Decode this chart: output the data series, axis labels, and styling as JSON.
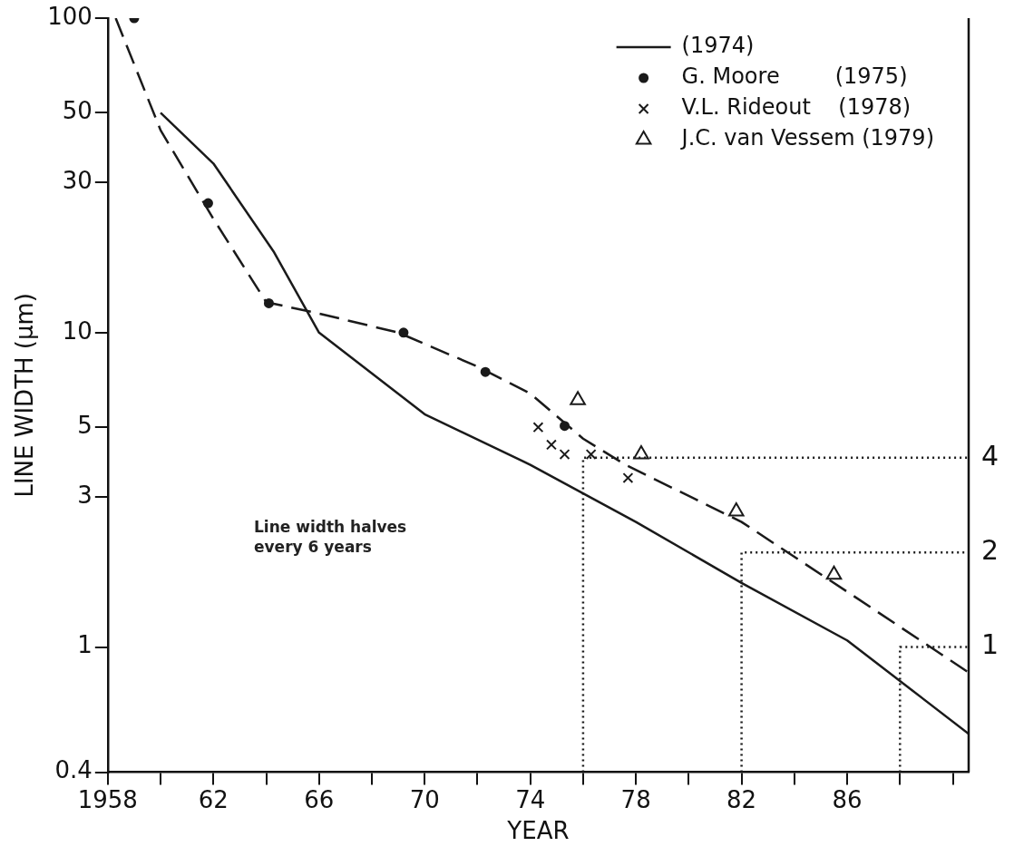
{
  "chart_data": {
    "type": "line",
    "xlabel": "YEAR",
    "ylabel": "LINE WIDTH (μm)",
    "log": "y",
    "grid": false,
    "legend": "top right",
    "xlim": [
      1958,
      1990.6
    ],
    "xticks": [
      {
        "value": 1958,
        "label": "1958"
      },
      {
        "value": 1960,
        "label": null
      },
      {
        "value": 1962,
        "label": "62"
      },
      {
        "value": 1964,
        "label": null
      },
      {
        "value": 1966,
        "label": "66"
      },
      {
        "value": 1968,
        "label": null
      },
      {
        "value": 1970,
        "label": "70"
      },
      {
        "value": 1972,
        "label": null
      },
      {
        "value": 1974,
        "label": "74"
      },
      {
        "value": 1976,
        "label": null
      },
      {
        "value": 1978,
        "label": "78"
      },
      {
        "value": 1980,
        "label": null
      },
      {
        "value": 1982,
        "label": "82"
      },
      {
        "value": 1984,
        "label": null
      },
      {
        "value": 1986,
        "label": "86"
      },
      {
        "value": 1988,
        "label": null
      },
      {
        "value": 1990,
        "label": null
      }
    ],
    "ylim": [
      0.4,
      100
    ],
    "yticks": [
      0.4,
      1,
      3,
      5,
      10,
      30,
      50,
      100
    ],
    "annotations": [
      "Line width halves every 6 years"
    ],
    "series": [
      {
        "name": "(1974)",
        "color": "#1a1a1a",
        "line_style": "solid",
        "marker": "none",
        "x": [
          1960,
          1962,
          1964.3,
          1966,
          1970,
          1974,
          1978,
          1982,
          1986,
          1990.6
        ],
        "values": [
          50,
          34.5,
          18,
          10,
          5.5,
          3.8,
          2.5,
          1.6,
          1.05,
          0.53
        ]
      },
      {
        "color": "#1a1a1a",
        "line_style": "dashed",
        "marker": "none",
        "x": [
          1958.3,
          1960,
          1962,
          1964,
          1966,
          1969,
          1972,
          1974,
          1976,
          1977.6,
          1982,
          1986,
          1990.6
        ],
        "values": [
          100,
          44,
          23,
          12.5,
          11.5,
          10,
          7.8,
          6.4,
          4.6,
          3.8,
          2.5,
          1.5,
          0.83
        ]
      },
      {
        "name": "G. Moore        (1975)",
        "type": "scatter",
        "color": "#1a1a1a",
        "marker": "circle",
        "x": [
          1959,
          1961.8,
          1964.1,
          1969.2,
          1972.3,
          1975.3
        ],
        "values": [
          100,
          25.8,
          12.4,
          10,
          7.5,
          5.05
        ]
      },
      {
        "name": "V.L. Rideout    (1978)",
        "type": "scatter",
        "color": "#1a1a1a",
        "marker": "cross",
        "x": [
          1974.3,
          1974.8,
          1975.3,
          1976.3,
          1977.7
        ],
        "values": [
          5,
          4.4,
          4.1,
          4.1,
          3.45
        ]
      },
      {
        "name": "J.C. van Vessem (1979)",
        "type": "scatter",
        "color": "#1a1a1a",
        "marker": "triangle",
        "x": [
          1975.8,
          1978.2,
          1981.8,
          1985.5
        ],
        "values": [
          6.1,
          4.1,
          2.7,
          1.7
        ]
      },
      {
        "name": "4",
        "color": "#1a1a1a",
        "line_style": "dotted",
        "marker": "none",
        "x": [
          1976,
          1976,
          1990.6
        ],
        "values": [
          0.4,
          4,
          4
        ]
      },
      {
        "name": "2",
        "color": "#1a1a1a",
        "line_style": "dotted",
        "marker": "none",
        "x": [
          1982,
          1982,
          1990.6
        ],
        "values": [
          0.4,
          2,
          2
        ]
      },
      {
        "name": "1",
        "color": "#1a1a1a",
        "line_style": "dotted",
        "marker": "none",
        "x": [
          1988,
          1988,
          1990.6
        ],
        "values": [
          0.4,
          1,
          1
        ]
      }
    ]
  }
}
